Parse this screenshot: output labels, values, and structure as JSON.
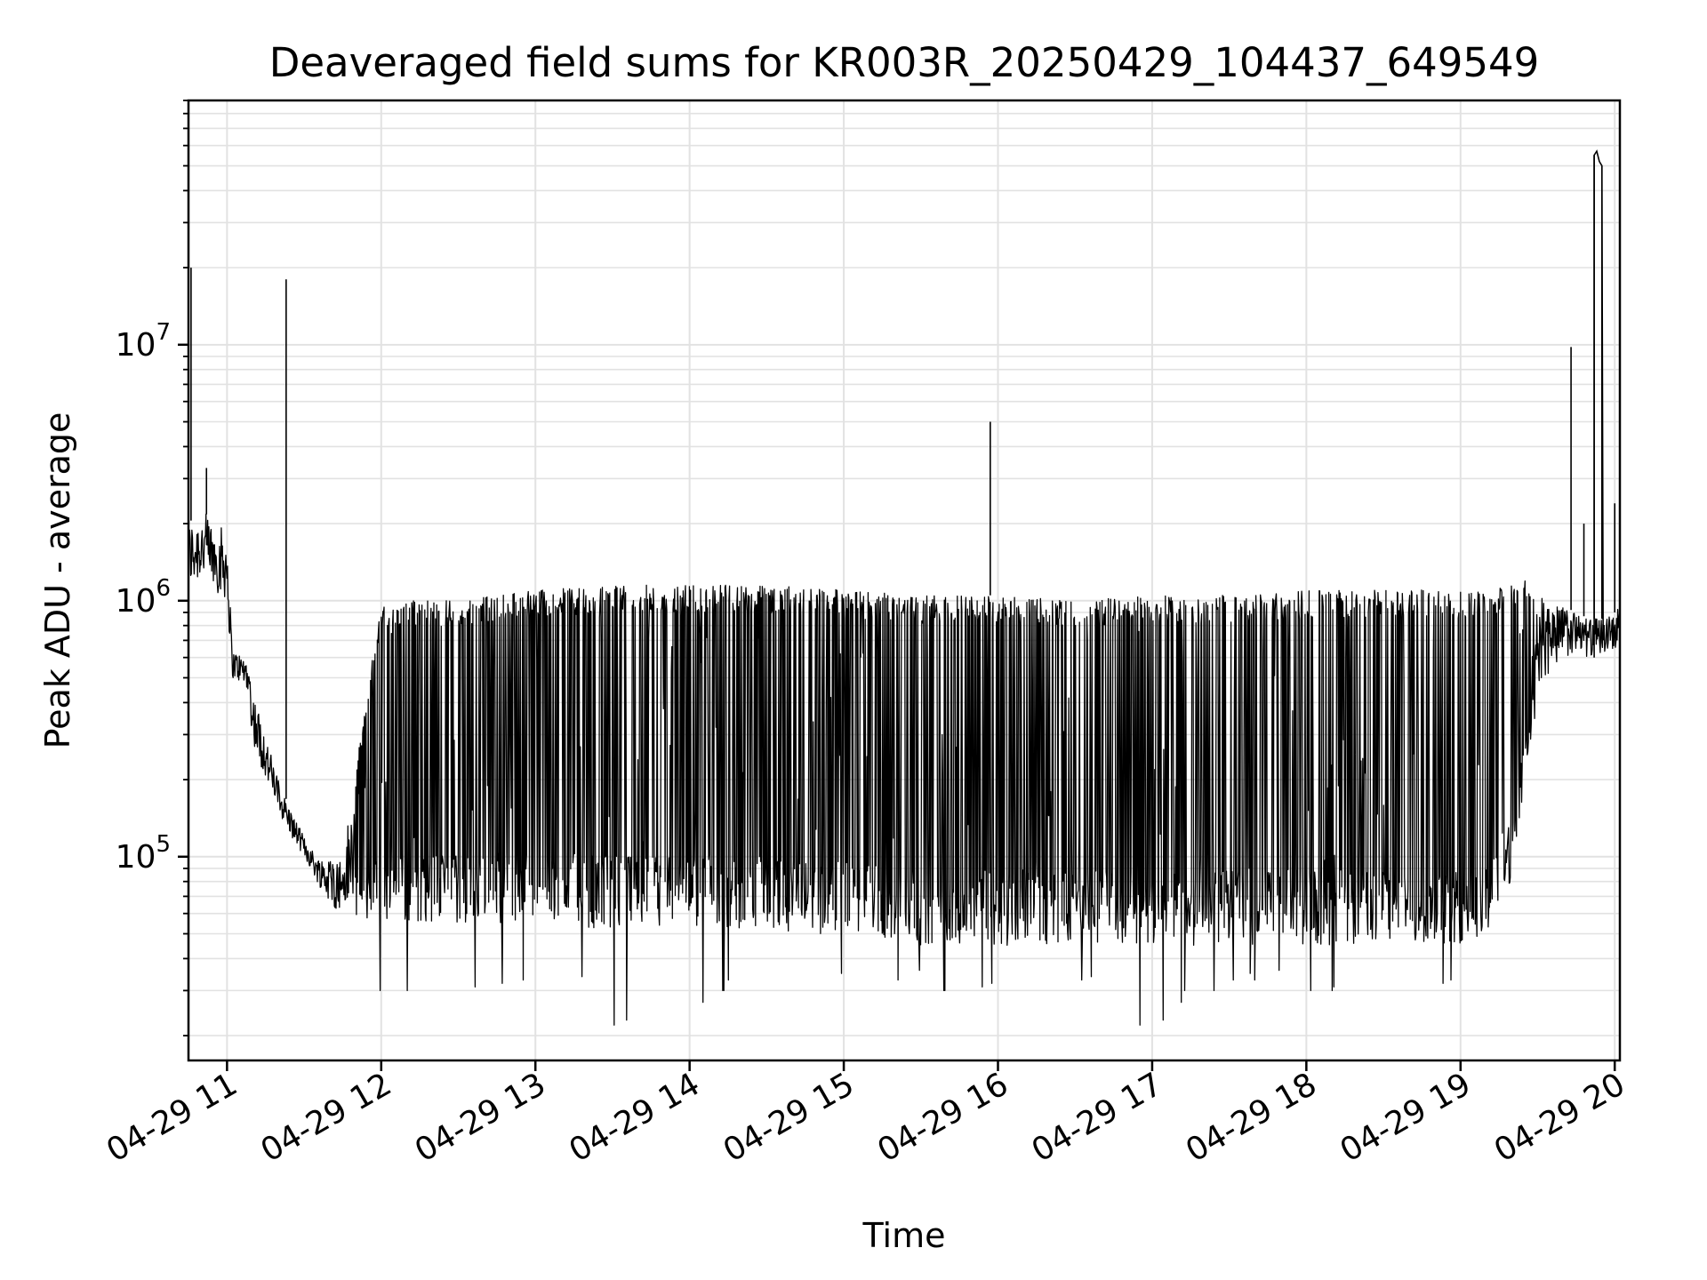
{
  "chart_data": {
    "type": "line",
    "title": "Deaveraged field sums for KR003R_20250429_104437_649549",
    "xlabel": "Time",
    "ylabel": "Peak ADU - average",
    "yscale": "log",
    "ylim": [
      16000,
      90000000
    ],
    "xlim": [
      "2025-04-29 10:45",
      "2025-04-29 20:02"
    ],
    "grid": true,
    "line_color": "#000000",
    "x_tick_labels": [
      "04-29 11",
      "04-29 12",
      "04-29 13",
      "04-29 14",
      "04-29 15",
      "04-29 16",
      "04-29 17",
      "04-29 18",
      "04-29 19",
      "04-29 20"
    ],
    "y_tick_labels": [
      {
        "base": "10",
        "exp": "5",
        "value": 100000
      },
      {
        "base": "10",
        "exp": "6",
        "value": 1000000
      },
      {
        "base": "10",
        "exp": "7",
        "value": 10000000
      }
    ],
    "series": [
      {
        "x": [
          "10:45",
          "10:50",
          "10:55",
          "11:00",
          "11:02",
          "11:05",
          "11:08",
          "11:10",
          "11:15",
          "11:20",
          "11:25",
          "11:30",
          "11:35",
          "11:40",
          "11:45",
          "12:00",
          "12:30",
          "13:00",
          "13:30",
          "14:00",
          "14:30",
          "15:00",
          "15:30",
          "16:00",
          "16:30",
          "17:00",
          "17:30",
          "18:00",
          "18:30",
          "19:00",
          "19:10",
          "19:20",
          "19:25",
          "19:30",
          "19:35",
          "19:40",
          "19:45",
          "19:50",
          "19:55",
          "20:00",
          "20:02"
        ],
        "lower": [
          1100000,
          1200000,
          1100000,
          1000000,
          500000,
          480000,
          450000,
          280000,
          200000,
          150000,
          120000,
          100000,
          80000,
          65000,
          60000,
          55000,
          55000,
          55000,
          52000,
          50000,
          50000,
          48000,
          45000,
          45000,
          45000,
          45000,
          45000,
          45000,
          45000,
          45000,
          50000,
          80000,
          200000,
          400000,
          550000,
          600000,
          620000,
          600000,
          620000,
          650000,
          680000
        ],
        "upper": [
          2000000,
          2300000,
          2000000,
          1900000,
          650000,
          620000,
          600000,
          450000,
          300000,
          200000,
          150000,
          120000,
          100000,
          100000,
          100000,
          1000000,
          1000000,
          1100000,
          1150000,
          1150000,
          1150000,
          1100000,
          1050000,
          1050000,
          1000000,
          1050000,
          1050000,
          1100000,
          1100000,
          1100000,
          1100000,
          1150000,
          1200000,
          1100000,
          1000000,
          950000,
          900000,
          850000,
          850000,
          900000,
          950000
        ],
        "min_dips": [
          30000,
          30000,
          31000,
          32000,
          33000,
          34000,
          22000,
          23000,
          27000,
          30000,
          30000,
          33000,
          35000,
          33000,
          36000
        ],
        "spikes": [
          {
            "x": "10:46",
            "y": 20000000
          },
          {
            "x": "10:52",
            "y": 3300000
          },
          {
            "x": "11:23",
            "y": 18000000
          },
          {
            "x": "15:57",
            "y": 5000000
          },
          {
            "x": "19:43",
            "y": 9800000
          },
          {
            "x": "19:48",
            "y": 2000000
          },
          {
            "x": "19:52",
            "y": 55000000
          },
          {
            "x": "19:55",
            "y": 50000000
          },
          {
            "x": "20:00",
            "y": 2400000
          }
        ]
      }
    ]
  }
}
